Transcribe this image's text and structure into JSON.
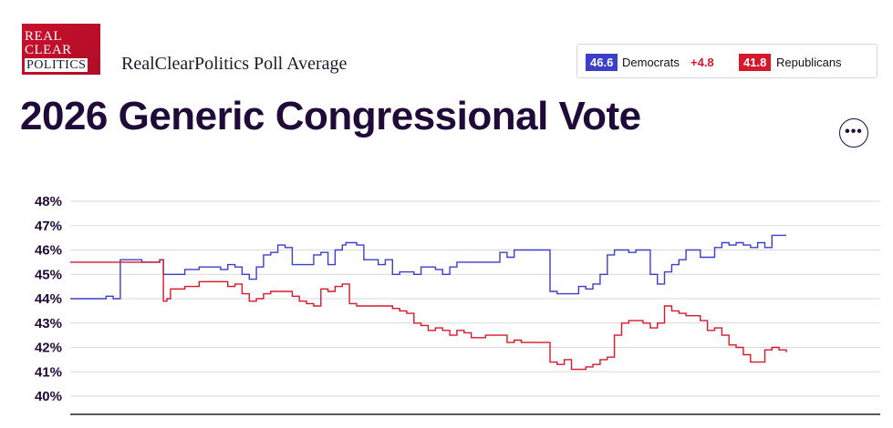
{
  "header": {
    "logo_lines": [
      "REAL",
      "CLEAR",
      "POLITICS"
    ],
    "subtitle": "RealClearPolitics Poll Average",
    "title": "2026 Generic Congressional Vote"
  },
  "legend": {
    "dem_value": "46.6",
    "dem_label": "Democrats",
    "spread": "+4.8",
    "rep_value": "41.8",
    "rep_label": "Republicans"
  },
  "more_button": {
    "label": "•••",
    "icon": "more-icon"
  },
  "colors": {
    "democrats": "#3b3fc9",
    "republicans": "#d6182a",
    "grid": "#d9d9d9",
    "axis": "#222222"
  },
  "chart_data": {
    "type": "line",
    "title": "2026 Generic Congressional Vote",
    "xlabel": "",
    "ylabel": "",
    "ylim": [
      39.5,
      48.5
    ],
    "yticks": [
      48,
      47,
      46,
      45,
      44,
      43,
      42,
      41,
      40
    ],
    "ytick_labels": [
      "48%",
      "47%",
      "46%",
      "45%",
      "44%",
      "43%",
      "42%",
      "41%",
      "40%"
    ],
    "grid": true,
    "x_note": "sequential poll-average observations (no x-axis labels shown)",
    "x": [
      0,
      3,
      5,
      6,
      7,
      10,
      11,
      12,
      12.5,
      13,
      13.5,
      14,
      16,
      18,
      20,
      21,
      22,
      23,
      24,
      25,
      26,
      27,
      28,
      29,
      30,
      31,
      32,
      33,
      34,
      35,
      36,
      37,
      38,
      38.5,
      39,
      40,
      41,
      42,
      43,
      44,
      45,
      46,
      47,
      48,
      49,
      50,
      51,
      52,
      53,
      54,
      55,
      56,
      57,
      58,
      59,
      60,
      61,
      62,
      63,
      64,
      65,
      66,
      67,
      68,
      69,
      70,
      71,
      72,
      73,
      74,
      75,
      76,
      77,
      78,
      79,
      80,
      81,
      82,
      83,
      84,
      85,
      86,
      87,
      88,
      89,
      90,
      91,
      92,
      93,
      94,
      95,
      96,
      97,
      98,
      99,
      100
    ],
    "series": [
      {
        "name": "Democrats",
        "color": "#3b3fc9",
        "values": [
          44.0,
          44.0,
          44.1,
          44.0,
          45.6,
          45.5,
          45.5,
          45.5,
          45.6,
          45.0,
          45.0,
          45.0,
          45.2,
          45.3,
          45.3,
          45.2,
          45.4,
          45.3,
          45.0,
          44.8,
          45.3,
          45.8,
          45.9,
          46.2,
          46.1,
          45.4,
          45.4,
          45.4,
          45.8,
          45.9,
          45.4,
          46.0,
          46.2,
          46.3,
          46.3,
          46.2,
          45.6,
          45.6,
          45.4,
          45.6,
          45.0,
          45.1,
          45.1,
          45.0,
          45.3,
          45.3,
          45.2,
          45.0,
          45.3,
          45.5,
          45.5,
          45.5,
          45.5,
          45.5,
          45.5,
          45.9,
          45.7,
          46.0,
          46.0,
          46.0,
          46.0,
          46.0,
          44.3,
          44.2,
          44.2,
          44.2,
          44.5,
          44.4,
          44.6,
          45.0,
          45.8,
          46.0,
          46.0,
          45.9,
          46.0,
          46.0,
          45.0,
          44.6,
          45.1,
          45.4,
          45.6,
          46.0,
          46.0,
          45.7,
          45.7,
          46.1,
          46.3,
          46.2,
          46.3,
          46.2,
          46.1,
          46.3,
          46.1,
          46.6,
          46.6,
          46.6
        ]
      },
      {
        "name": "Republicans",
        "color": "#d6182a",
        "values": [
          45.5,
          45.5,
          45.5,
          45.5,
          45.5,
          45.5,
          45.5,
          45.5,
          45.6,
          43.9,
          44.0,
          44.4,
          44.5,
          44.7,
          44.7,
          44.7,
          44.5,
          44.6,
          44.2,
          43.9,
          44.0,
          44.2,
          44.3,
          44.3,
          44.3,
          44.1,
          43.9,
          43.8,
          43.7,
          44.4,
          44.3,
          44.5,
          44.6,
          44.6,
          43.8,
          43.7,
          43.7,
          43.7,
          43.7,
          43.7,
          43.6,
          43.5,
          43.4,
          43.0,
          42.9,
          42.7,
          42.8,
          42.7,
          42.5,
          42.7,
          42.6,
          42.4,
          42.4,
          42.5,
          42.5,
          42.5,
          42.2,
          42.3,
          42.2,
          42.2,
          42.2,
          42.2,
          41.4,
          41.3,
          41.5,
          41.1,
          41.1,
          41.2,
          41.3,
          41.5,
          41.6,
          42.5,
          43.0,
          43.1,
          43.1,
          43.0,
          42.8,
          43.0,
          43.7,
          43.5,
          43.4,
          43.3,
          43.3,
          43.1,
          42.7,
          42.8,
          42.5,
          42.1,
          42.0,
          41.7,
          41.4,
          41.4,
          41.9,
          42.0,
          41.9,
          41.8
        ]
      }
    ]
  }
}
